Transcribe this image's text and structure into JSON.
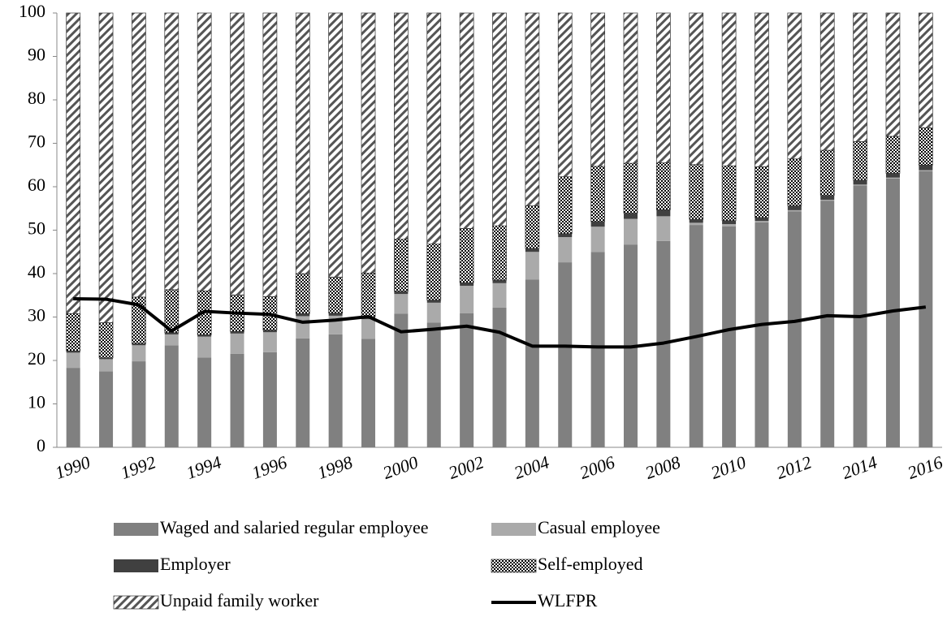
{
  "chart_data": {
    "type": "bar",
    "stacked": true,
    "categories": [
      "1990",
      null,
      "1992",
      null,
      "1994",
      null,
      "1996",
      null,
      "1998",
      null,
      "2000",
      null,
      "2002",
      null,
      "2004",
      null,
      "2006",
      null,
      "2008",
      null,
      "2010",
      null,
      "2012",
      null,
      "2014",
      null,
      "2016"
    ],
    "ylim": [
      0,
      100
    ],
    "yticks": [
      0,
      10,
      20,
      30,
      40,
      50,
      60,
      70,
      80,
      90,
      100
    ],
    "grid": false,
    "series": [
      {
        "name": "Waged and salaried regular employee",
        "color": "#808080",
        "values": [
          18.3,
          17.5,
          19.8,
          23.5,
          20.7,
          21.5,
          21.9,
          25.1,
          26.0,
          25.0,
          30.8,
          28.7,
          30.9,
          32.2,
          38.6,
          42.6,
          45.0,
          46.7,
          47.5,
          51.2,
          50.9,
          51.8,
          54.3,
          56.8,
          60.3,
          61.9,
          63.6
        ]
      },
      {
        "name": "Casual employee",
        "color": "#aaaaaa",
        "values": [
          3.5,
          2.8,
          3.7,
          2.5,
          4.8,
          4.7,
          4.6,
          5.1,
          4.3,
          4.5,
          4.5,
          4.6,
          6.3,
          5.6,
          6.4,
          5.8,
          5.8,
          5.9,
          5.7,
          0.5,
          0.5,
          0.3,
          0.3,
          0.2,
          0.2,
          0.2,
          0.2
        ]
      },
      {
        "name": "Employer",
        "color": "#404040",
        "values": [
          0.4,
          0.3,
          0.4,
          0.4,
          0.4,
          0.5,
          0.5,
          0.6,
          0.6,
          0.6,
          0.6,
          0.6,
          0.7,
          0.7,
          0.8,
          0.8,
          1.2,
          1.3,
          1.5,
          0.8,
          0.8,
          0.8,
          1.0,
          1.0,
          1.0,
          1.0,
          1.2
        ]
      },
      {
        "name": "Self-employed",
        "color": "#000000",
        "pattern": "checker",
        "values": [
          8.6,
          8.1,
          10.7,
          9.9,
          10.1,
          8.4,
          7.7,
          9.2,
          8.3,
          10.0,
          12.0,
          12.9,
          12.5,
          12.5,
          9.8,
          13.1,
          12.7,
          11.5,
          10.8,
          12.6,
          12.6,
          11.7,
          10.8,
          10.4,
          8.9,
          8.5,
          8.6
        ]
      },
      {
        "name": "Unpaid family worker",
        "color": "#555555",
        "pattern": "diagonal",
        "values": [
          69.2,
          71.3,
          65.4,
          63.7,
          64.0,
          64.9,
          65.3,
          60.0,
          60.8,
          59.9,
          52.1,
          53.2,
          49.6,
          49.0,
          44.4,
          37.7,
          35.3,
          34.6,
          34.5,
          34.9,
          35.2,
          35.4,
          33.6,
          31.6,
          29.6,
          28.4,
          26.4
        ]
      },
      {
        "name": "WLFPR",
        "type": "line",
        "color": "#000000",
        "values": [
          34.2,
          34.1,
          32.8,
          26.8,
          31.3,
          30.9,
          30.6,
          28.8,
          29.3,
          30.1,
          26.6,
          27.2,
          27.9,
          26.5,
          23.3,
          23.3,
          23.1,
          23.1,
          24.0,
          25.5,
          27.1,
          28.3,
          29.0,
          30.3,
          30.1,
          31.4,
          32.3
        ]
      }
    ]
  }
}
